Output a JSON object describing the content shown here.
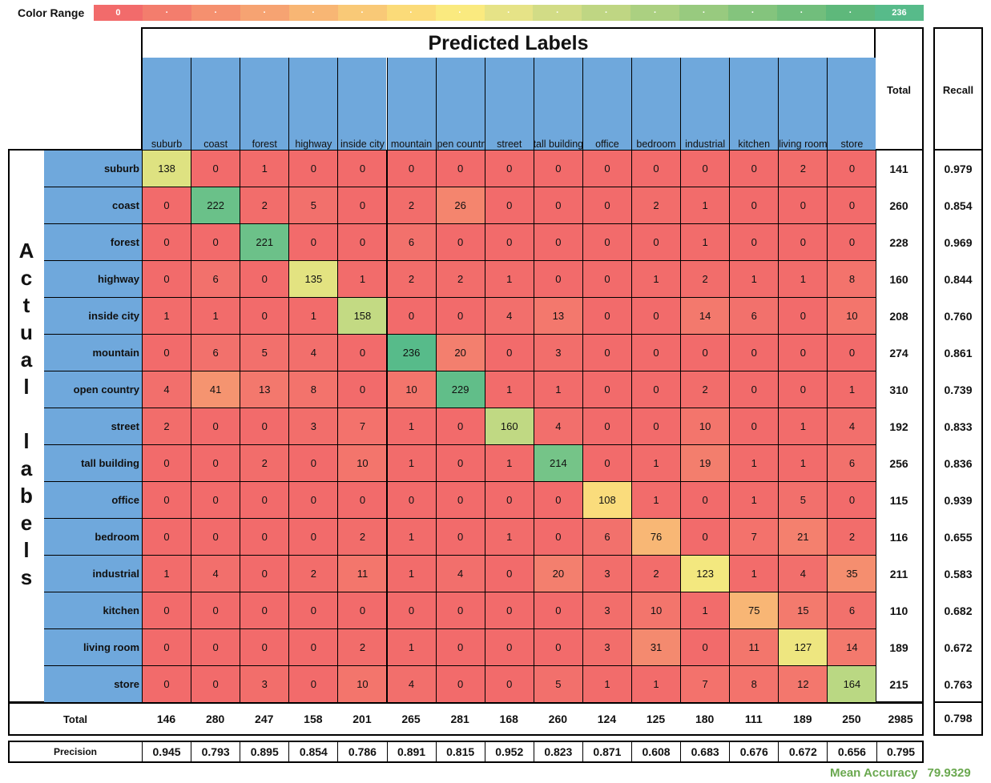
{
  "color_range": {
    "label": "Color Range",
    "min_label": "0",
    "max_label": "236",
    "colors": [
      "#f26b6b",
      "#f37d6d",
      "#f5906f",
      "#f6a372",
      "#f8b674",
      "#f9c977",
      "#fbdb79",
      "#faea7f",
      "#e6e387",
      "#d2dc86",
      "#bfd683",
      "#abd081",
      "#98ca7f",
      "#84c47d",
      "#71be7c",
      "#5eb87b",
      "#57bb8a"
    ]
  },
  "chart_data": {
    "type": "heatmap",
    "title": "Predicted Labels",
    "xlabel": "Predicted Labels",
    "ylabel": "Actual labels",
    "x": [
      "suburb",
      "coast",
      "forest",
      "highway",
      "inside city",
      "mountain",
      "open country",
      "street",
      "tall building",
      "office",
      "bedroom",
      "industrial",
      "kitchen",
      "living room",
      "store"
    ],
    "y": [
      "suburb",
      "coast",
      "forest",
      "highway",
      "inside city",
      "mountain",
      "open country",
      "street",
      "tall building",
      "office",
      "bedroom",
      "industrial",
      "kitchen",
      "living room",
      "store"
    ],
    "values": [
      [
        138,
        0,
        1,
        0,
        0,
        0,
        0,
        0,
        0,
        0,
        0,
        0,
        0,
        2,
        0
      ],
      [
        0,
        222,
        2,
        5,
        0,
        2,
        26,
        0,
        0,
        0,
        2,
        1,
        0,
        0,
        0
      ],
      [
        0,
        0,
        221,
        0,
        0,
        6,
        0,
        0,
        0,
        0,
        0,
        1,
        0,
        0,
        0
      ],
      [
        0,
        6,
        0,
        135,
        1,
        2,
        2,
        1,
        0,
        0,
        1,
        2,
        1,
        1,
        8
      ],
      [
        1,
        1,
        0,
        1,
        158,
        0,
        0,
        4,
        13,
        0,
        0,
        14,
        6,
        0,
        10
      ],
      [
        0,
        6,
        5,
        4,
        0,
        236,
        20,
        0,
        3,
        0,
        0,
        0,
        0,
        0,
        0
      ],
      [
        4,
        41,
        13,
        8,
        0,
        10,
        229,
        1,
        1,
        0,
        0,
        2,
        0,
        0,
        1
      ],
      [
        2,
        0,
        0,
        3,
        7,
        1,
        0,
        160,
        4,
        0,
        0,
        10,
        0,
        1,
        4
      ],
      [
        0,
        0,
        2,
        0,
        10,
        1,
        0,
        1,
        214,
        0,
        1,
        19,
        1,
        1,
        6
      ],
      [
        0,
        0,
        0,
        0,
        0,
        0,
        0,
        0,
        0,
        108,
        1,
        0,
        1,
        5,
        0
      ],
      [
        0,
        0,
        0,
        0,
        2,
        1,
        0,
        1,
        0,
        6,
        76,
        0,
        7,
        21,
        2
      ],
      [
        1,
        4,
        0,
        2,
        11,
        1,
        4,
        0,
        20,
        3,
        2,
        123,
        1,
        4,
        35
      ],
      [
        0,
        0,
        0,
        0,
        0,
        0,
        0,
        0,
        0,
        3,
        10,
        1,
        75,
        15,
        6
      ],
      [
        0,
        0,
        0,
        0,
        2,
        1,
        0,
        0,
        0,
        3,
        31,
        0,
        11,
        127,
        14
      ],
      [
        0,
        0,
        3,
        0,
        10,
        4,
        0,
        0,
        5,
        1,
        1,
        7,
        8,
        12,
        164
      ]
    ],
    "color_min": 0,
    "color_max": 236,
    "row_totals": [
      "141",
      "260",
      "228",
      "160",
      "208",
      "274",
      "310",
      "192",
      "256",
      "115",
      "116",
      "211",
      "110",
      "189",
      "215"
    ],
    "recall": [
      "0.979",
      "0.854",
      "0.969",
      "0.844",
      "0.760",
      "0.861",
      "0.739",
      "0.833",
      "0.836",
      "0.939",
      "0.655",
      "0.583",
      "0.682",
      "0.672",
      "0.763"
    ],
    "col_totals": [
      "146",
      "280",
      "247",
      "158",
      "201",
      "265",
      "281",
      "168",
      "260",
      "124",
      "125",
      "180",
      "111",
      "189",
      "250"
    ],
    "grand_total": "2985",
    "overall_recall": "0.798",
    "precision": [
      "0.945",
      "0.793",
      "0.895",
      "0.854",
      "0.786",
      "0.891",
      "0.815",
      "0.952",
      "0.823",
      "0.871",
      "0.608",
      "0.683",
      "0.676",
      "0.672",
      "0.656"
    ],
    "overall_precision": "0.795"
  },
  "labels": {
    "predicted_title": "Predicted Labels",
    "actual_letters": [
      "A",
      "c",
      "t",
      "u",
      "a",
      "l",
      "",
      "l",
      "a",
      "b",
      "e",
      "l",
      "s"
    ],
    "total_header": "Total",
    "recall_header": "Recall",
    "total_row_label": "Total",
    "precision_label": "Precision",
    "mean_accuracy_label": "Mean Accuracy",
    "mean_accuracy_value": "79.9329"
  }
}
